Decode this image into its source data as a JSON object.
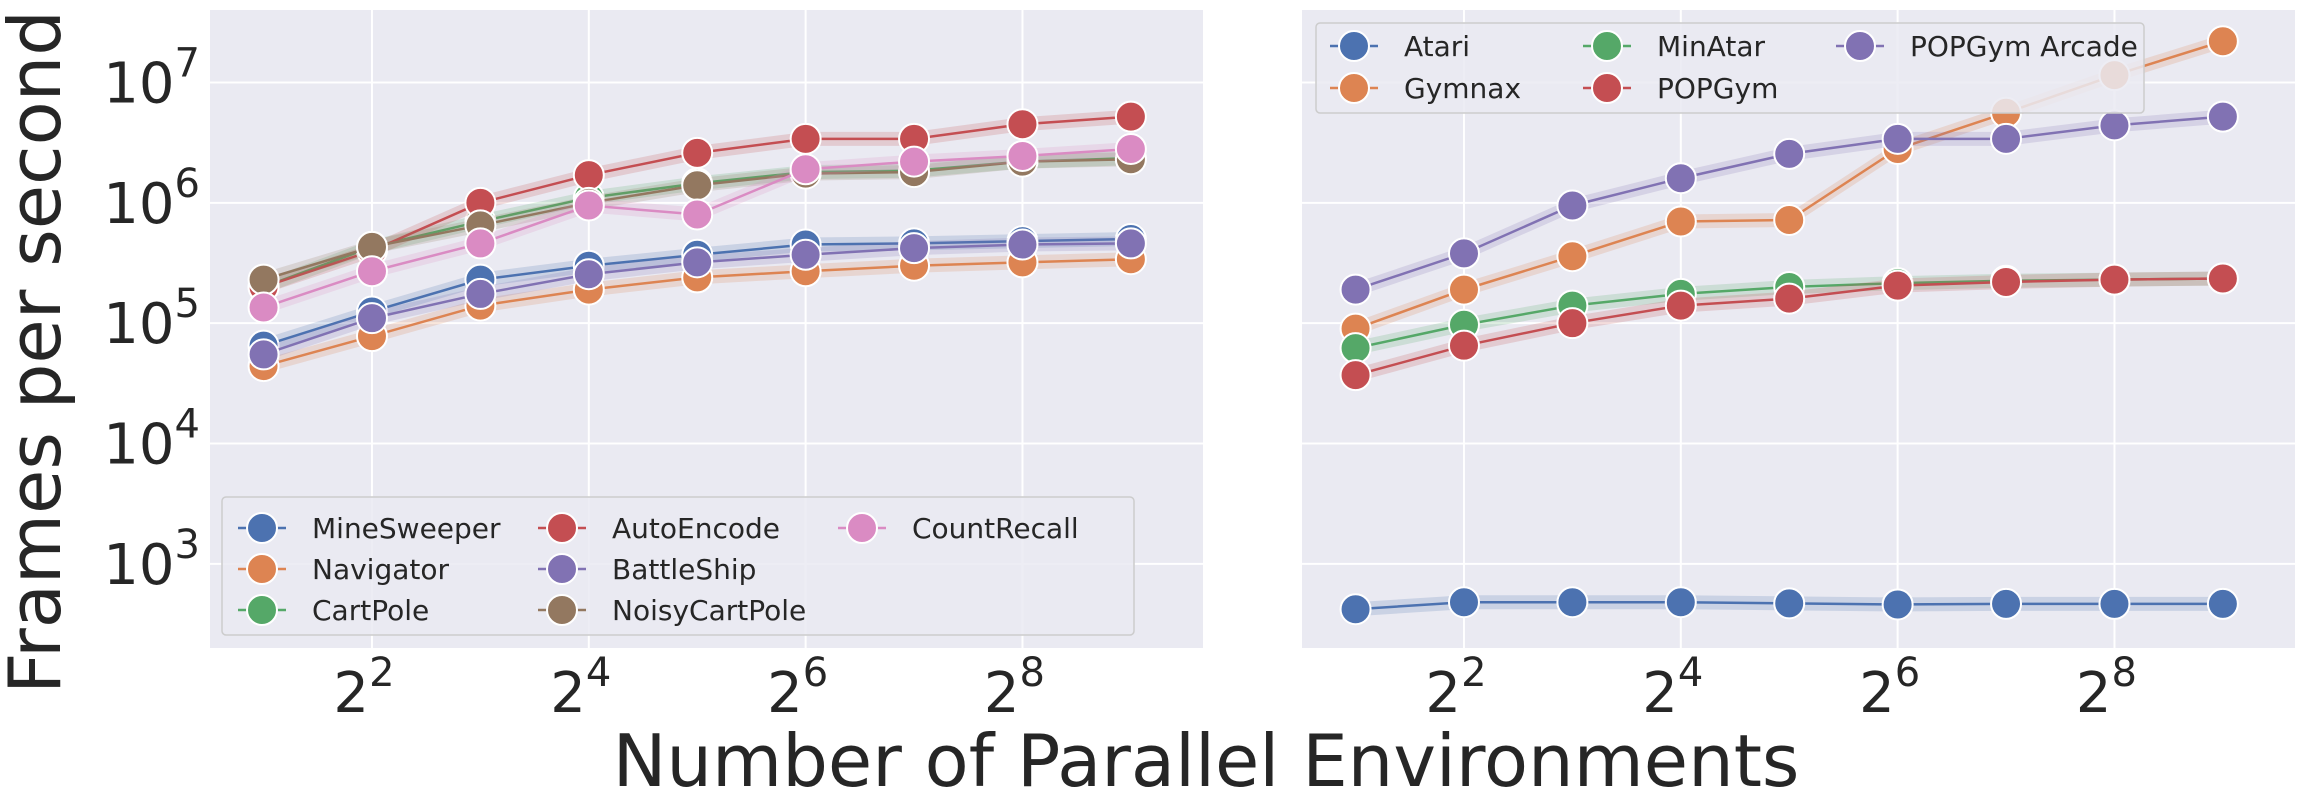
{
  "figure": {
    "ylabel": "Frames per second",
    "xlabel": "Number of Parallel Environments"
  },
  "chart_data": [
    {
      "type": "line",
      "title": "",
      "xlabel": "",
      "ylabel": "Frames per second",
      "x_scale": "log2",
      "y_scale": "log10",
      "grid": true,
      "legend_position": "lower-left",
      "legend_columns": 3,
      "xlim": [
        1.42,
        812
      ],
      "ylim": [
        200,
        40000000
      ],
      "x_ticks": [
        {
          "value": 4,
          "base": "2",
          "exp": "2"
        },
        {
          "value": 16,
          "base": "2",
          "exp": "4"
        },
        {
          "value": 64,
          "base": "2",
          "exp": "6"
        },
        {
          "value": 256,
          "base": "2",
          "exp": "8"
        }
      ],
      "y_ticks": [
        {
          "value": 1000,
          "base": "10",
          "exp": "3"
        },
        {
          "value": 10000,
          "base": "10",
          "exp": "4"
        },
        {
          "value": 100000,
          "base": "10",
          "exp": "5"
        },
        {
          "value": 1000000,
          "base": "10",
          "exp": "6"
        },
        {
          "value": 10000000,
          "base": "10",
          "exp": "7"
        }
      ],
      "x": [
        2,
        4,
        8,
        16,
        32,
        64,
        128,
        256,
        512
      ],
      "series": [
        {
          "name": "MineSweeper",
          "color": "#4c72b0",
          "values": [
            65000,
            125000,
            230000,
            300000,
            370000,
            450000,
            460000,
            480000,
            500000
          ]
        },
        {
          "name": "Navigator",
          "color": "#dd8452",
          "values": [
            44000,
            78000,
            140000,
            190000,
            240000,
            270000,
            300000,
            320000,
            340000
          ]
        },
        {
          "name": "CartPole",
          "color": "#55a868",
          "values": [
            200000,
            430000,
            700000,
            1100000,
            1450000,
            1800000,
            1850000,
            2200000,
            2350000
          ]
        },
        {
          "name": "AutoEncode",
          "color": "#c44e52",
          "values": [
            200000,
            400000,
            1000000,
            1700000,
            2600000,
            3400000,
            3400000,
            4500000,
            5200000
          ]
        },
        {
          "name": "BattleShip",
          "color": "#8172b3",
          "values": [
            55000,
            110000,
            175000,
            255000,
            320000,
            370000,
            420000,
            450000,
            460000
          ]
        },
        {
          "name": "NoisyCartPole",
          "color": "#937860",
          "values": [
            230000,
            430000,
            650000,
            1000000,
            1400000,
            1750000,
            1800000,
            2200000,
            2300000
          ]
        },
        {
          "name": "CountRecall",
          "color": "#da8bc3",
          "values": [
            135000,
            270000,
            460000,
            950000,
            800000,
            1900000,
            2200000,
            2450000,
            2800000
          ]
        }
      ]
    },
    {
      "type": "line",
      "title": "",
      "xlabel": "",
      "ylabel": "",
      "x_scale": "log2",
      "y_scale": "log10",
      "grid": true,
      "legend_position": "top-left",
      "legend_columns": 3,
      "xlim": [
        1.42,
        812
      ],
      "ylim": [
        200,
        40000000
      ],
      "x_ticks": [
        {
          "value": 4,
          "base": "2",
          "exp": "2"
        },
        {
          "value": 16,
          "base": "2",
          "exp": "4"
        },
        {
          "value": 64,
          "base": "2",
          "exp": "6"
        },
        {
          "value": 256,
          "base": "2",
          "exp": "8"
        }
      ],
      "x": [
        2,
        4,
        8,
        16,
        32,
        64,
        128,
        256,
        512
      ],
      "series": [
        {
          "name": "Atari",
          "color": "#4c72b0",
          "values": [
            420,
            480,
            480,
            480,
            470,
            460,
            465,
            465,
            465
          ]
        },
        {
          "name": "Gymnax",
          "color": "#dd8452",
          "values": [
            90000,
            190000,
            360000,
            700000,
            720000,
            2800000,
            5600000,
            11500000,
            22000000
          ]
        },
        {
          "name": "MinAtar",
          "color": "#55a868",
          "values": [
            62000,
            97000,
            140000,
            175000,
            200000,
            215000,
            225000,
            230000,
            235000
          ]
        },
        {
          "name": "POPGym",
          "color": "#c44e52",
          "values": [
            37000,
            65000,
            100000,
            140000,
            160000,
            205000,
            220000,
            230000,
            235000
          ]
        },
        {
          "name": "POPGym Arcade",
          "color": "#8172b3",
          "values": [
            190000,
            380000,
            950000,
            1600000,
            2550000,
            3400000,
            3400000,
            4400000,
            5200000
          ]
        }
      ]
    }
  ]
}
